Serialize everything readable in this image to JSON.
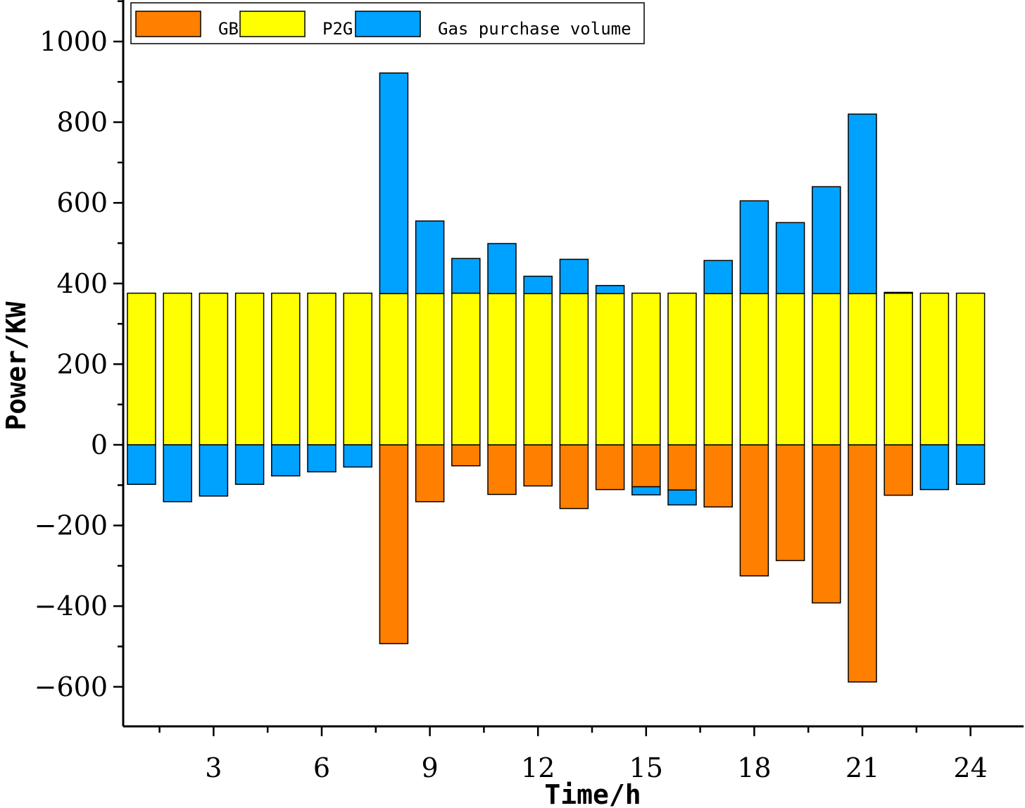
{
  "chart_data": {
    "type": "bar",
    "stacking": "diverging",
    "title": "",
    "xlabel": "Time/h",
    "ylabel": "Power/KW",
    "ylim": [
      -700,
      1100
    ],
    "yticks": [
      -600,
      -400,
      -200,
      0,
      200,
      400,
      600,
      800,
      1000
    ],
    "ytick_labels": [
      "-600",
      "-400",
      "-200",
      "0",
      "200",
      "400",
      "600",
      "800",
      "1000"
    ],
    "x": [
      1,
      2,
      3,
      4,
      5,
      6,
      7,
      8,
      9,
      10,
      11,
      12,
      13,
      14,
      15,
      16,
      17,
      18,
      19,
      20,
      21,
      22,
      23,
      24
    ],
    "xticks": [
      3,
      6,
      9,
      12,
      15,
      18,
      21,
      24
    ],
    "xtick_labels": [
      "3",
      "6",
      "9",
      "12",
      "15",
      "18",
      "21",
      "24"
    ],
    "legend_position": "top-left",
    "series": [
      {
        "name": "GB",
        "color": "#ff7f00",
        "values": [
          0,
          0,
          0,
          0,
          0,
          0,
          0,
          -493,
          -141,
          -52,
          -123,
          -102,
          -158,
          -111,
          -104,
          -112,
          -154,
          -325,
          -287,
          -392,
          -588,
          -125,
          0,
          0
        ]
      },
      {
        "name": "P2G",
        "color": "#ffff00",
        "values": [
          376,
          376,
          376,
          376,
          376,
          376,
          376,
          375,
          375,
          376,
          375,
          375,
          375,
          375,
          376,
          376,
          375,
          375,
          375,
          375,
          375,
          376,
          376,
          376
        ]
      },
      {
        "name": "Gas purchase volume",
        "color": "#00a2ff",
        "values": [
          -98,
          -141,
          -127,
          -98,
          -77,
          -67,
          -55,
          547,
          180,
          86,
          124,
          43,
          85,
          20,
          -20,
          -37,
          82,
          230,
          176,
          265,
          445,
          2,
          -111,
          -98
        ]
      }
    ]
  }
}
